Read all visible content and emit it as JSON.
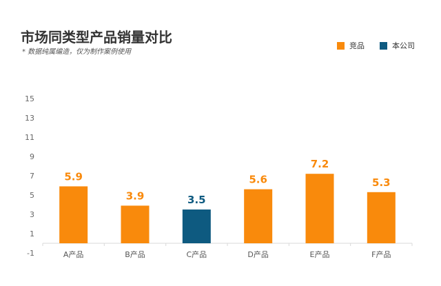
{
  "chart_data": {
    "type": "bar",
    "title": "市场同类型产品销量对比",
    "subtitle": "* 数据纯属编造，仅为制作案例使用",
    "categories": [
      "A产品",
      "B产品",
      "C产品",
      "D产品",
      "E产品",
      "F产品"
    ],
    "values": [
      5.9,
      3.9,
      3.5,
      5.6,
      7.2,
      5.3
    ],
    "value_labels": [
      "5.9",
      "3.9",
      "3.5",
      "5.6",
      "7.2",
      "5.3"
    ],
    "series_of_bar": [
      "竞品",
      "竞品",
      "本公司",
      "竞品",
      "竞品",
      "竞品"
    ],
    "legend": [
      {
        "name": "竞品",
        "color": "#F98A0C"
      },
      {
        "name": "本公司",
        "color": "#0E5A80"
      }
    ],
    "legend_position": "top-right",
    "yticks": [
      "15",
      "13",
      "11",
      "9",
      "7",
      "5",
      "3",
      "1",
      "-1"
    ],
    "ylim": [
      -1,
      15
    ],
    "grid": false,
    "xlabel": "",
    "ylabel": ""
  }
}
